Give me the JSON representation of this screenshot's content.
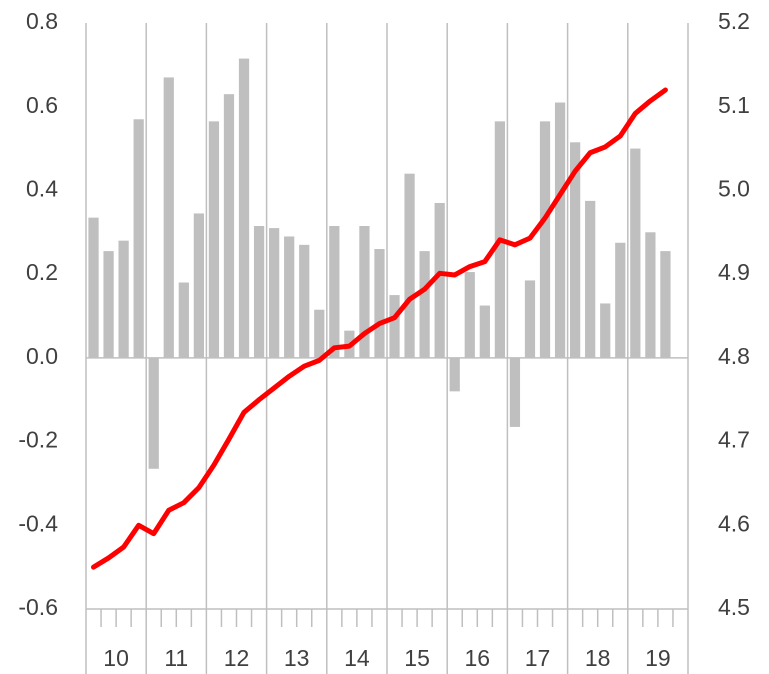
{
  "chart_data": {
    "type": "bar-line",
    "categories": [
      "10",
      null,
      null,
      null,
      "11",
      null,
      null,
      null,
      "12",
      null,
      null,
      null,
      "13",
      null,
      null,
      null,
      "14",
      null,
      null,
      null,
      "15",
      null,
      null,
      null,
      "16",
      null,
      null,
      null,
      "17",
      null,
      null,
      null,
      "18",
      null,
      null,
      null,
      "19",
      null,
      null,
      null
    ],
    "series": [
      {
        "type": "bar",
        "color": "#bfbfbf",
        "values": [
          0.335,
          0.255,
          0.28,
          0.57,
          -0.265,
          0.67,
          0.18,
          0.345,
          0.565,
          0.63,
          0.715,
          0.315,
          0.31,
          0.29,
          0.27,
          0.115,
          0.315,
          0.065,
          0.315,
          0.26,
          0.15,
          0.44,
          0.255,
          0.37,
          -0.08,
          0.205,
          0.125,
          0.565,
          -0.165,
          0.185,
          0.565,
          0.61,
          0.515,
          0.375,
          0.13,
          0.275,
          0.5,
          0.3,
          0.255,
          null
        ]
      },
      {
        "type": "line",
        "axis": "y2",
        "color": "#ff0000",
        "values": [
          4.55,
          4.561,
          4.574,
          4.6,
          4.59,
          4.618,
          4.627,
          4.645,
          4.672,
          4.703,
          4.735,
          4.75,
          4.764,
          4.778,
          4.79,
          4.797,
          4.812,
          4.814,
          4.829,
          4.841,
          4.848,
          4.87,
          4.882,
          4.901,
          4.899,
          4.909,
          4.915,
          4.941,
          4.935,
          4.943,
          4.967,
          4.995,
          5.023,
          5.045,
          5.052,
          5.065,
          5.092,
          5.107,
          5.12,
          null
        ]
      }
    ],
    "ylim": [
      -0.6,
      0.8
    ],
    "yticks": [
      -0.6,
      -0.4,
      -0.2,
      {
        "value": 0,
        "label": "0.0"
      },
      0.2,
      0.4,
      0.6,
      0.8
    ],
    "y2lim": [
      4.5,
      5.2
    ],
    "y2ticks": [
      4.5,
      4.6,
      4.7,
      4.8,
      4.9,
      {
        "value": 5,
        "label": "5.0"
      },
      5.1,
      5.2
    ],
    "grid": true
  }
}
